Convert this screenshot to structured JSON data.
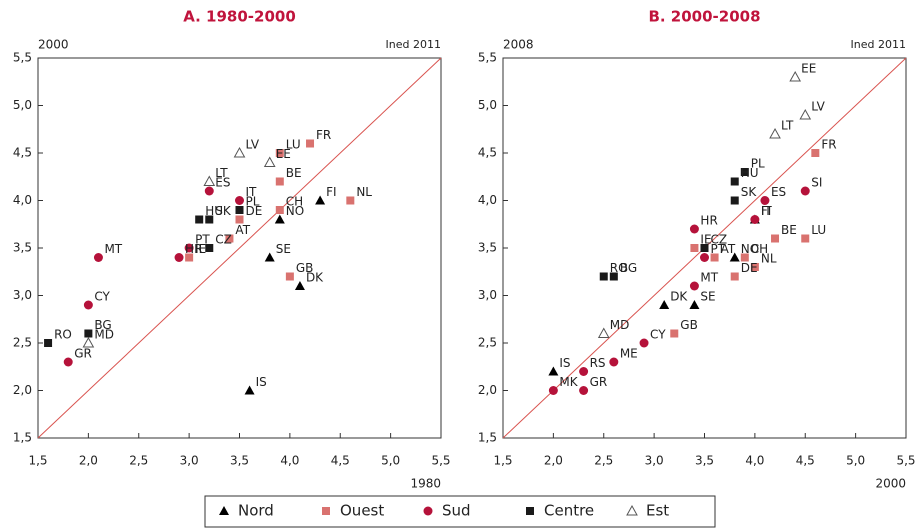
{
  "legend": [
    {
      "name": "Nord",
      "color": "#000000",
      "marker": "triangle"
    },
    {
      "name": "Ouest",
      "color": "#d9726f",
      "marker": "square"
    },
    {
      "name": "Sud",
      "color": "#b5123a",
      "marker": "circle"
    },
    {
      "name": "Centre",
      "color": "#1a1a1a",
      "marker": "square"
    },
    {
      "name": "Est",
      "color": "#555555",
      "marker": "open-triangle"
    }
  ],
  "chart_data": [
    {
      "type": "scatter",
      "title": "A. 1980-2000",
      "xlabel": "1980",
      "ylabel": "2000",
      "note": "Ined 2011",
      "diagonal": true,
      "diagonal_color": "#d9534f",
      "xlim": [
        1.5,
        5.5
      ],
      "ylim": [
        1.5,
        5.5
      ],
      "xticks": [
        {
          "value": 1.5,
          "label": "1,5"
        },
        {
          "value": 2,
          "label": "2,0"
        },
        {
          "value": 2.5,
          "label": "2,5"
        },
        {
          "value": 3,
          "label": "3,0"
        },
        {
          "value": 3.5,
          "label": "3,5"
        },
        {
          "value": 4,
          "label": "4,0"
        },
        {
          "value": 4.5,
          "label": "4,5"
        },
        {
          "value": 5,
          "label": "5,0"
        },
        {
          "value": 5.5,
          "label": "5,5"
        }
      ],
      "yticks": [
        {
          "value": 1.5,
          "label": "1,5"
        },
        {
          "value": 2,
          "label": "2,0"
        },
        {
          "value": 2.5,
          "label": "2,5"
        },
        {
          "value": 3,
          "label": "3,0"
        },
        {
          "value": 3.5,
          "label": "3,5"
        },
        {
          "value": 4,
          "label": "4,0"
        },
        {
          "value": 4.5,
          "label": "4,5"
        },
        {
          "value": 5,
          "label": "5,0"
        },
        {
          "value": 5.5,
          "label": "5,5"
        }
      ],
      "series": [
        {
          "labels": [
            "FI",
            "NO",
            "SE",
            "DK",
            "IS"
          ],
          "x": [
            4.3,
            3.9,
            3.8,
            4.1,
            3.6
          ],
          "values": [
            4.0,
            3.8,
            3.4,
            3.1,
            2.0
          ]
        },
        {
          "labels": [
            "LU",
            "FR",
            "BE",
            "CH",
            "NL",
            "DE",
            "AT",
            "IE",
            "GB"
          ],
          "x": [
            3.9,
            4.2,
            3.9,
            3.9,
            4.6,
            3.5,
            3.4,
            3.0,
            4.0
          ],
          "values": [
            4.5,
            4.6,
            4.2,
            3.9,
            4.0,
            3.8,
            3.6,
            3.4,
            3.2
          ]
        },
        {
          "labels": [
            "ES",
            "IT",
            "PT",
            "HR",
            "MT",
            "CY",
            "GR"
          ],
          "x": [
            3.2,
            3.5,
            3.0,
            2.9,
            2.1,
            2.0,
            1.8
          ],
          "values": [
            4.1,
            4.0,
            3.5,
            3.4,
            3.4,
            2.9,
            2.3
          ]
        },
        {
          "labels": [
            "HU",
            "SK",
            "PL",
            "CZ",
            "RO",
            "BG"
          ],
          "x": [
            3.1,
            3.2,
            3.5,
            3.2,
            1.6,
            2.0
          ],
          "values": [
            3.8,
            3.8,
            3.9,
            3.5,
            2.5,
            2.6
          ]
        },
        {
          "labels": [
            "LV",
            "LT",
            "EE",
            "MD"
          ],
          "x": [
            3.5,
            3.2,
            3.8,
            2.0
          ],
          "values": [
            4.5,
            4.2,
            4.4,
            2.5
          ]
        }
      ]
    },
    {
      "type": "scatter",
      "title": "B. 2000-2008",
      "xlabel": "2000",
      "ylabel": "2008",
      "note": "Ined 2011",
      "diagonal": true,
      "diagonal_color": "#d9534f",
      "xlim": [
        1.5,
        5.5
      ],
      "ylim": [
        1.5,
        5.5
      ],
      "xticks": [
        {
          "value": 1.5,
          "label": "1,5"
        },
        {
          "value": 2,
          "label": "2,0"
        },
        {
          "value": 2.5,
          "label": "2,5"
        },
        {
          "value": 3,
          "label": "3,0"
        },
        {
          "value": 3.5,
          "label": "3,5"
        },
        {
          "value": 4,
          "label": "4,0"
        },
        {
          "value": 4.5,
          "label": "4,5"
        },
        {
          "value": 5,
          "label": "5,0"
        },
        {
          "value": 5.5,
          "label": "5,5"
        }
      ],
      "yticks": [
        {
          "value": 1.5,
          "label": "1,5"
        },
        {
          "value": 2,
          "label": "2,0"
        },
        {
          "value": 2.5,
          "label": "2,5"
        },
        {
          "value": 3,
          "label": "3,0"
        },
        {
          "value": 3.5,
          "label": "3,5"
        },
        {
          "value": 4,
          "label": "4,0"
        },
        {
          "value": 4.5,
          "label": "4,5"
        },
        {
          "value": 5,
          "label": "5,0"
        },
        {
          "value": 5.5,
          "label": "5,5"
        }
      ],
      "series": [
        {
          "labels": [
            "NO",
            "FI",
            "SE",
            "DK",
            "IS"
          ],
          "x": [
            3.8,
            4.0,
            3.4,
            3.1,
            2.0
          ],
          "values": [
            3.4,
            3.8,
            2.9,
            2.9,
            2.2
          ]
        },
        {
          "labels": [
            "FR",
            "BE",
            "LU",
            "CH",
            "NL",
            "IE",
            "AT",
            "DE",
            "GB"
          ],
          "x": [
            4.6,
            4.2,
            4.5,
            3.9,
            4.0,
            3.4,
            3.6,
            3.8,
            3.2
          ],
          "values": [
            4.5,
            3.6,
            3.6,
            3.4,
            3.3,
            3.5,
            3.4,
            3.2,
            2.6
          ]
        },
        {
          "labels": [
            "ES",
            "SI",
            "IT",
            "HR",
            "PT",
            "MT",
            "CY",
            "ME",
            "RS",
            "GR",
            "MK"
          ],
          "x": [
            4.1,
            4.5,
            4.0,
            3.4,
            3.5,
            3.4,
            2.9,
            2.6,
            2.3,
            2.3,
            2.0
          ],
          "values": [
            4.0,
            4.1,
            3.8,
            3.7,
            3.4,
            3.1,
            2.5,
            2.3,
            2.2,
            2.0,
            2.0
          ]
        },
        {
          "labels": [
            "PL",
            "HU",
            "SK",
            "CZ",
            "RO",
            "BG"
          ],
          "x": [
            3.9,
            3.8,
            3.8,
            3.5,
            2.5,
            2.6
          ],
          "values": [
            4.3,
            4.2,
            4.0,
            3.5,
            3.2,
            3.2
          ]
        },
        {
          "labels": [
            "EE",
            "LV",
            "LT",
            "MD"
          ],
          "x": [
            4.4,
            4.5,
            4.2,
            2.5
          ],
          "values": [
            5.3,
            4.9,
            4.7,
            2.6
          ]
        }
      ]
    }
  ]
}
